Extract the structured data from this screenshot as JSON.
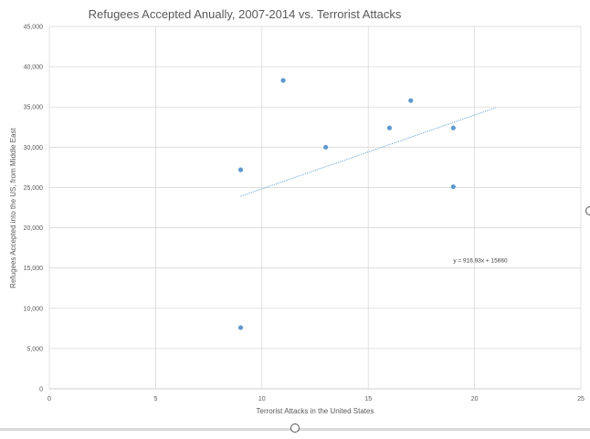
{
  "chart_data": {
    "type": "scatter",
    "title": "Refugees Accepted Anually, 2007-2014 vs. Terrorist Attacks",
    "xlabel": "Terrorist Attacks in the United States",
    "ylabel": "Refugees Accepted into the US, from Middle East",
    "xlim": [
      0,
      25
    ],
    "ylim": [
      0,
      45000
    ],
    "x_ticks": [
      "0",
      "5",
      "10",
      "15",
      "20",
      "25"
    ],
    "x_tick_values": [
      0,
      5,
      10,
      15,
      20,
      25
    ],
    "y_ticks": [
      "0",
      "5,000",
      "10,000",
      "15,000",
      "20,000",
      "25,000",
      "30,000",
      "35,000",
      "40,000",
      "45,000"
    ],
    "y_tick_values": [
      0,
      5000,
      10000,
      15000,
      20000,
      25000,
      30000,
      35000,
      40000,
      45000
    ],
    "grid": true,
    "points": [
      {
        "x": 9,
        "y": 7600
      },
      {
        "x": 9,
        "y": 27200
      },
      {
        "x": 11,
        "y": 38300
      },
      {
        "x": 13,
        "y": 30000
      },
      {
        "x": 16,
        "y": 32400
      },
      {
        "x": 17,
        "y": 35800
      },
      {
        "x": 19,
        "y": 32400
      },
      {
        "x": 19,
        "y": 25100
      }
    ],
    "trendline": {
      "slope": 916.93,
      "intercept": 15660,
      "x_range": [
        9,
        21
      ]
    },
    "trendline_label": "y = 916.93x + 15660",
    "trendline_label_position": {
      "x": 19.0,
      "y": 15700
    },
    "colors": {
      "marker": "#5b9bd5",
      "trendline": "#5b9bd5",
      "grid": "#d9d9d9",
      "text": "#595959"
    }
  }
}
